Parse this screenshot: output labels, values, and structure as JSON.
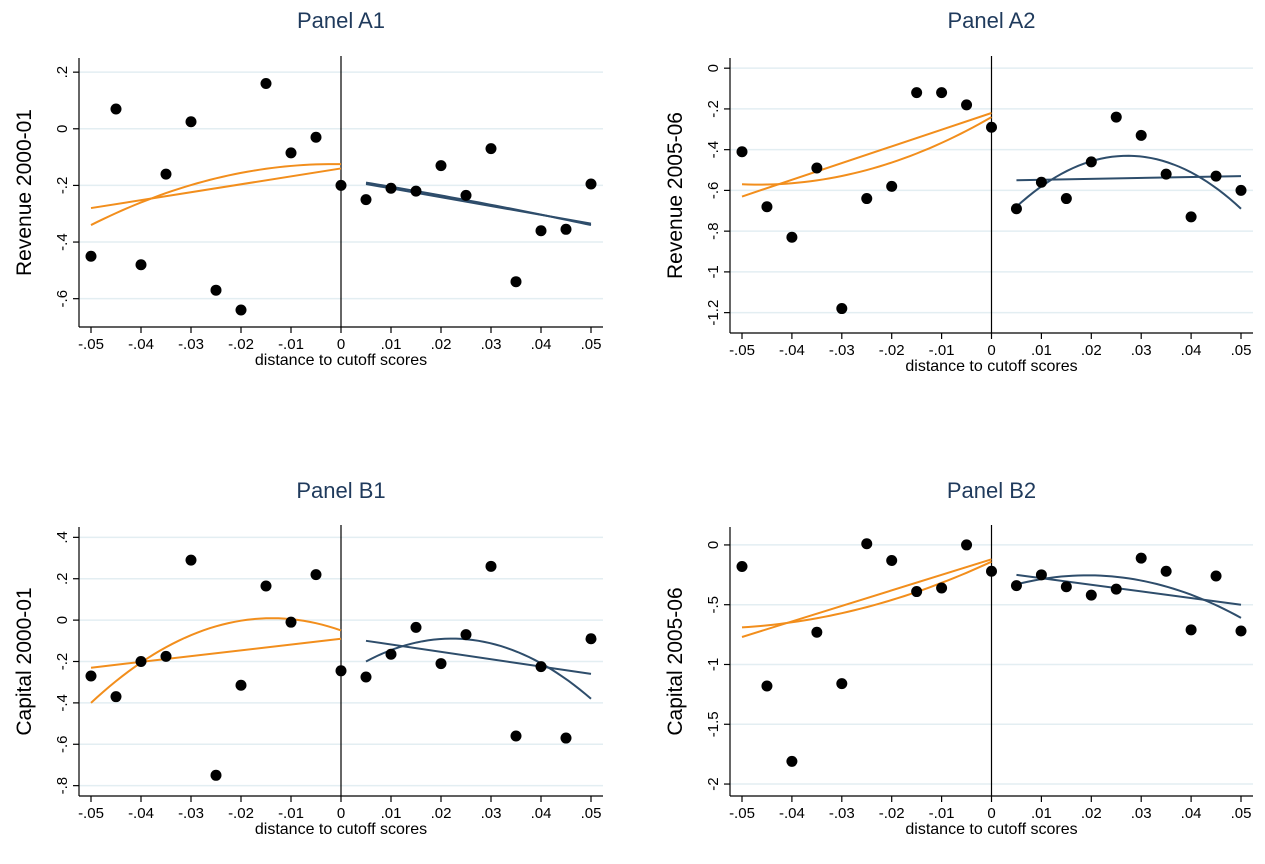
{
  "colors": {
    "left_fit": "#f28e1c",
    "right_fit": "#2e4d6b",
    "points": "#000000",
    "grid": "#e3eef2",
    "title": "#1f3a5c"
  },
  "chart_data": [
    {
      "id": "A1",
      "type": "scatter",
      "title": "Panel A1",
      "xlabel": "distance to cutoff scores",
      "ylabel": "Revenue 2000-01",
      "xlim": [
        -0.05,
        0.05
      ],
      "ylim": [
        -0.7,
        0.25
      ],
      "xticks": [
        -0.05,
        -0.04,
        -0.03,
        -0.02,
        -0.01,
        0,
        0.01,
        0.02,
        0.03,
        0.04,
        0.05
      ],
      "xtick_labels": [
        "-.05",
        "-.04",
        "-.03",
        "-.02",
        "-.01",
        "0",
        ".01",
        ".02",
        ".03",
        ".04",
        ".05"
      ],
      "yticks": [
        -0.6,
        -0.4,
        -0.2,
        0,
        0.2
      ],
      "ytick_labels": [
        "-.6",
        "-.4",
        "-.2",
        "0",
        ".2"
      ],
      "grid": true,
      "cutoff_line": 0,
      "points": [
        [
          -0.05,
          -0.45
        ],
        [
          -0.045,
          0.07
        ],
        [
          -0.04,
          -0.48
        ],
        [
          -0.035,
          -0.16
        ],
        [
          -0.03,
          0.025
        ],
        [
          -0.025,
          -0.57
        ],
        [
          -0.02,
          -0.64
        ],
        [
          -0.015,
          0.16
        ],
        [
          -0.01,
          -0.085
        ],
        [
          -0.005,
          -0.03
        ],
        [
          0,
          -0.2
        ],
        [
          0.005,
          -0.25
        ],
        [
          0.01,
          -0.21
        ],
        [
          0.015,
          -0.22
        ],
        [
          0.02,
          -0.13
        ],
        [
          0.025,
          -0.235
        ],
        [
          0.03,
          -0.07
        ],
        [
          0.035,
          -0.54
        ],
        [
          0.04,
          -0.36
        ],
        [
          0.045,
          -0.355
        ],
        [
          0.05,
          -0.195
        ]
      ],
      "fits": [
        {
          "side": "left",
          "kind": "linear",
          "x": [
            -0.05,
            0
          ],
          "y": [
            -0.28,
            -0.14
          ]
        },
        {
          "side": "left",
          "kind": "quadratic",
          "x": [
            -0.05,
            -0.025,
            0
          ],
          "y": [
            -0.34,
            -0.175,
            -0.125
          ]
        },
        {
          "side": "right",
          "kind": "linear",
          "x": [
            0.005,
            0.05
          ],
          "y": [
            -0.195,
            -0.335
          ]
        },
        {
          "side": "right",
          "kind": "quadratic",
          "x": [
            0.005,
            0.0275,
            0.05
          ],
          "y": [
            -0.19,
            -0.26,
            -0.34
          ]
        }
      ]
    },
    {
      "id": "A2",
      "type": "scatter",
      "title": "Panel A2",
      "xlabel": "distance to cutoff scores",
      "ylabel": "Revenue 2005-06",
      "xlim": [
        -0.05,
        0.05
      ],
      "ylim": [
        -1.3,
        0.05
      ],
      "xticks": [
        -0.05,
        -0.04,
        -0.03,
        -0.02,
        -0.01,
        0,
        0.01,
        0.02,
        0.03,
        0.04,
        0.05
      ],
      "xtick_labels": [
        "-.05",
        "-.04",
        "-.03",
        "-.02",
        "-.01",
        "0",
        ".01",
        ".02",
        ".03",
        ".04",
        ".05"
      ],
      "yticks": [
        -1.2,
        -1,
        -0.8,
        -0.6,
        -0.4,
        -0.2,
        0
      ],
      "ytick_labels": [
        "-1.2",
        "-1",
        "-.8",
        "-.6",
        "-.4",
        "-.2",
        "0"
      ],
      "grid": true,
      "cutoff_line": 0,
      "points": [
        [
          -0.05,
          -0.41
        ],
        [
          -0.045,
          -0.68
        ],
        [
          -0.04,
          -0.83
        ],
        [
          -0.035,
          -0.49
        ],
        [
          -0.03,
          -1.18
        ],
        [
          -0.025,
          -0.64
        ],
        [
          -0.02,
          -0.58
        ],
        [
          -0.015,
          -0.12
        ],
        [
          -0.01,
          -0.12
        ],
        [
          -0.005,
          -0.18
        ],
        [
          0,
          -0.29
        ],
        [
          0.005,
          -0.69
        ],
        [
          0.01,
          -0.56
        ],
        [
          0.015,
          -0.64
        ],
        [
          0.02,
          -0.46
        ],
        [
          0.025,
          -0.24
        ],
        [
          0.03,
          -0.33
        ],
        [
          0.035,
          -0.52
        ],
        [
          0.04,
          -0.73
        ],
        [
          0.045,
          -0.53
        ],
        [
          0.05,
          -0.6
        ]
      ],
      "fits": [
        {
          "side": "left",
          "kind": "linear",
          "x": [
            -0.05,
            0
          ],
          "y": [
            -0.63,
            -0.22
          ]
        },
        {
          "side": "left",
          "kind": "quadratic",
          "x": [
            -0.05,
            -0.025,
            0
          ],
          "y": [
            -0.57,
            -0.5,
            -0.24
          ]
        },
        {
          "side": "right",
          "kind": "linear",
          "x": [
            0.005,
            0.05
          ],
          "y": [
            -0.55,
            -0.53
          ]
        },
        {
          "side": "right",
          "kind": "quadratic",
          "x": [
            0.005,
            0.0275,
            0.05
          ],
          "y": [
            -0.68,
            -0.43,
            -0.69
          ]
        }
      ]
    },
    {
      "id": "B1",
      "type": "scatter",
      "title": "Panel B1",
      "xlabel": "distance to cutoff scores",
      "ylabel": "Capital 2000-01",
      "xlim": [
        -0.05,
        0.05
      ],
      "ylim": [
        -0.85,
        0.45
      ],
      "xticks": [
        -0.05,
        -0.04,
        -0.03,
        -0.02,
        -0.01,
        0,
        0.01,
        0.02,
        0.03,
        0.04,
        0.05
      ],
      "xtick_labels": [
        "-.05",
        "-.04",
        "-.03",
        "-.02",
        "-.01",
        "0",
        ".01",
        ".02",
        ".03",
        ".04",
        ".05"
      ],
      "yticks": [
        -0.8,
        -0.6,
        -0.4,
        -0.2,
        0,
        0.2,
        0.4
      ],
      "ytick_labels": [
        "-.8",
        "-.6",
        "-.4",
        "-.2",
        "0",
        ".2",
        ".4"
      ],
      "grid": true,
      "cutoff_line": 0,
      "points": [
        [
          -0.05,
          -0.27
        ],
        [
          -0.045,
          -0.37
        ],
        [
          -0.04,
          -0.2
        ],
        [
          -0.035,
          -0.175
        ],
        [
          -0.03,
          0.29
        ],
        [
          -0.025,
          -0.75
        ],
        [
          -0.02,
          -0.315
        ],
        [
          -0.015,
          0.165
        ],
        [
          -0.01,
          -0.01
        ],
        [
          -0.005,
          0.22
        ],
        [
          0,
          -0.245
        ],
        [
          0.005,
          -0.275
        ],
        [
          0.01,
          -0.165
        ],
        [
          0.015,
          -0.035
        ],
        [
          0.02,
          -0.21
        ],
        [
          0.025,
          -0.07
        ],
        [
          0.03,
          0.26
        ],
        [
          0.035,
          -0.56
        ],
        [
          0.04,
          -0.225
        ],
        [
          0.045,
          -0.57
        ],
        [
          0.05,
          -0.09
        ]
      ],
      "fits": [
        {
          "side": "left",
          "kind": "linear",
          "x": [
            -0.05,
            0
          ],
          "y": [
            -0.23,
            -0.09
          ]
        },
        {
          "side": "left",
          "kind": "quadratic",
          "x": [
            -0.05,
            -0.025,
            0
          ],
          "y": [
            -0.4,
            -0.03,
            -0.05
          ]
        },
        {
          "side": "right",
          "kind": "linear",
          "x": [
            0.005,
            0.05
          ],
          "y": [
            -0.1,
            -0.26
          ]
        },
        {
          "side": "right",
          "kind": "quadratic",
          "x": [
            0.005,
            0.0275,
            0.05
          ],
          "y": [
            -0.2,
            -0.1,
            -0.38
          ]
        }
      ]
    },
    {
      "id": "B2",
      "type": "scatter",
      "title": "Panel B2",
      "xlabel": "distance to cutoff scores",
      "ylabel": "Capital 2005-06",
      "xlim": [
        -0.05,
        0.05
      ],
      "ylim": [
        -2.1,
        0.15
      ],
      "xticks": [
        -0.05,
        -0.04,
        -0.03,
        -0.02,
        -0.01,
        0,
        0.01,
        0.02,
        0.03,
        0.04,
        0.05
      ],
      "xtick_labels": [
        "-.05",
        "-.04",
        "-.03",
        "-.02",
        "-.01",
        "0",
        ".01",
        ".02",
        ".03",
        ".04",
        ".05"
      ],
      "yticks": [
        -2,
        -1.5,
        -1,
        -0.5,
        0
      ],
      "ytick_labels": [
        "-2",
        "-1.5",
        "-1",
        "-.5",
        "0"
      ],
      "grid": true,
      "cutoff_line": 0,
      "points": [
        [
          -0.05,
          -0.18
        ],
        [
          -0.045,
          -1.18
        ],
        [
          -0.04,
          -1.81
        ],
        [
          -0.035,
          -0.73
        ],
        [
          -0.03,
          -1.16
        ],
        [
          -0.025,
          0.01
        ],
        [
          -0.02,
          -0.13
        ],
        [
          -0.015,
          -0.39
        ],
        [
          -0.01,
          -0.36
        ],
        [
          -0.005,
          0.0
        ],
        [
          0,
          -0.22
        ],
        [
          0.005,
          -0.34
        ],
        [
          0.01,
          -0.25
        ],
        [
          0.015,
          -0.35
        ],
        [
          0.02,
          -0.42
        ],
        [
          0.025,
          -0.37
        ],
        [
          0.03,
          -0.11
        ],
        [
          0.035,
          -0.22
        ],
        [
          0.04,
          -0.71
        ],
        [
          0.045,
          -0.26
        ],
        [
          0.05,
          -0.72
        ]
      ],
      "fits": [
        {
          "side": "left",
          "kind": "linear",
          "x": [
            -0.05,
            0
          ],
          "y": [
            -0.77,
            -0.12
          ]
        },
        {
          "side": "left",
          "kind": "quadratic",
          "x": [
            -0.05,
            -0.025,
            0
          ],
          "y": [
            -0.69,
            -0.52,
            -0.14
          ]
        },
        {
          "side": "right",
          "kind": "linear",
          "x": [
            0.005,
            0.05
          ],
          "y": [
            -0.25,
            -0.5
          ]
        },
        {
          "side": "right",
          "kind": "quadratic",
          "x": [
            0.005,
            0.0275,
            0.05
          ],
          "y": [
            -0.33,
            -0.28,
            -0.61
          ]
        }
      ]
    }
  ]
}
